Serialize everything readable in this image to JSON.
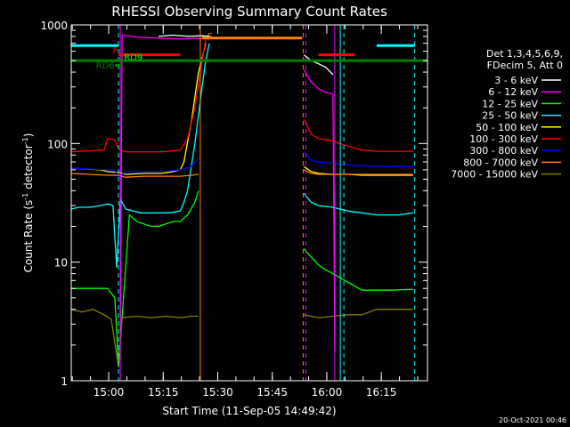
{
  "chart_data": {
    "type": "line",
    "title": "RHESSI Observing Summary Count Rates",
    "xlabel": "Start Time (11-Sep-05 14:49:42)",
    "ylabel": "Count Rate (s",
    "ylabel_sup": "-1",
    "ylabel_tail": " detector",
    "ylabel_tail_sup": "-1",
    "ylabel_close": ")",
    "yscale": "log",
    "ylim": [
      1,
      1000
    ],
    "xlim": [
      0,
      98
    ],
    "x_unit": "minutes after start",
    "y_ticks": [
      {
        "value": 1,
        "label": "1"
      },
      {
        "value": 10,
        "label": "10"
      },
      {
        "value": 100,
        "label": "100"
      },
      {
        "value": 1000,
        "label": "1000"
      }
    ],
    "x_ticks": [
      {
        "value": 10.3,
        "label": "15:00"
      },
      {
        "value": 25.3,
        "label": "15:15"
      },
      {
        "value": 40.3,
        "label": "15:30"
      },
      {
        "value": 55.3,
        "label": "15:45"
      },
      {
        "value": 70.3,
        "label": "16:00"
      },
      {
        "value": 85.3,
        "label": "16:15"
      }
    ],
    "legend_header": [
      "Det 1,3,4,5,6,9,",
      "FDecim 5, Att 0"
    ],
    "series": [
      {
        "name": "3 - 6 keV",
        "color": "#ffffff",
        "segments": [
          {
            "x": [
              24,
              28,
              32,
              36,
              38
            ],
            "y": [
              800,
              820,
              800,
              810,
              800
            ]
          },
          {
            "x": [
              64,
              66,
              68,
              70,
              72
            ],
            "y": [
              560,
              500,
              470,
              440,
              380
            ]
          }
        ]
      },
      {
        "name": "6 - 12 keV",
        "color": "#ff00ff",
        "segments": [
          {
            "x": [
              13.5,
              14,
              18,
              22,
              26,
              30,
              34,
              38
            ],
            "y": [
              2.2,
              820,
              790,
              780,
              770,
              760,
              770,
              760
            ]
          },
          {
            "x": [
              64,
              66,
              68,
              70,
              72,
              72.5
            ],
            "y": [
              420,
              330,
              290,
              270,
              260,
              1.8
            ]
          }
        ]
      },
      {
        "name": "12 - 25 keV",
        "color": "#00ff00",
        "segments": [
          {
            "x": [
              0,
              10,
              12,
              13,
              16,
              18,
              20,
              22,
              24,
              26,
              28,
              30,
              32,
              34,
              35
            ],
            "y": [
              6,
              6,
              5,
              1.3,
              25,
              22,
              21,
              20,
              20,
              21,
              22,
              22,
              25,
              32,
              40
            ]
          },
          {
            "x": [
              64,
              66,
              68,
              70,
              72,
              76,
              80,
              84,
              88,
              94
            ],
            "y": [
              13,
              11,
              9.5,
              8.6,
              8,
              6.8,
              5.8,
              5.8,
              5.8,
              5.9
            ]
          }
        ]
      },
      {
        "name": "25 - 50 keV",
        "color": "#00ffff",
        "segments": [
          {
            "x": [
              0,
              2,
              5,
              8,
              10,
              11.5,
              12.5,
              13.5,
              15,
              19,
              23,
              27,
              30,
              31,
              32,
              34,
              36,
              37,
              38
            ],
            "y": [
              28,
              29,
              29,
              30,
              31,
              30,
              9,
              34,
              28,
              26,
              26,
              26,
              27,
              32,
              40,
              100,
              300,
              500,
              700
            ]
          },
          {
            "x": [
              64,
              66,
              68,
              72,
              76,
              80,
              84,
              90,
              94
            ],
            "y": [
              38,
              32,
              30,
              29,
              27,
              26,
              25,
              25,
              26
            ]
          }
        ]
      },
      {
        "name": "50 - 100 keV",
        "color": "#ffff00",
        "segments": [
          {
            "x": [
              0,
              4,
              8,
              10,
              13,
              15,
              20,
              25,
              28,
              30,
              31,
              33,
              35,
              37
            ],
            "y": [
              62,
              61,
              60,
              58,
              57,
              55,
              56,
              56,
              58,
              60,
              70,
              150,
              400,
              700
            ]
          },
          {
            "x": [
              64,
              66,
              68,
              72,
              76,
              80,
              84,
              90,
              94
            ],
            "y": [
              64,
              58,
              56,
              55,
              55,
              54,
              54,
              54,
              54
            ]
          }
        ]
      },
      {
        "name": "100 - 300 keV",
        "color": "#ff0000",
        "segments": [
          {
            "x": [
              0,
              6,
              9,
              10,
              12,
              13,
              15,
              20,
              25,
              30,
              32,
              34,
              36,
              37
            ],
            "y": [
              85,
              87,
              88,
              110,
              108,
              90,
              85,
              85,
              85,
              88,
              110,
              200,
              500,
              750
            ]
          },
          {
            "x": [
              64,
              66,
              68,
              72,
              76,
              80,
              84,
              90,
              94
            ],
            "y": [
              160,
              120,
              110,
              105,
              95,
              88,
              86,
              86,
              86
            ]
          }
        ]
      },
      {
        "name": "300 - 800 keV",
        "color": "#0000ff",
        "segments": [
          {
            "x": [
              0,
              5,
              10,
              12,
              13,
              15,
              20,
              25,
              30,
              33,
              35
            ],
            "y": [
              62,
              61,
              60,
              60,
              52,
              58,
              58,
              58,
              60,
              64,
              75
            ]
          },
          {
            "x": [
              64,
              66,
              68,
              72,
              76,
              80,
              84,
              90,
              94
            ],
            "y": [
              85,
              72,
              70,
              68,
              66,
              65,
              64,
              64,
              64
            ]
          }
        ]
      },
      {
        "name": "800 - 7000 keV",
        "color": "#ff8000",
        "segments": [
          {
            "x": [
              0,
              5,
              10,
              13,
              15,
              20,
              25,
              30,
              33,
              35
            ],
            "y": [
              56,
              55,
              54,
              54,
              52,
              53,
              53,
              53,
              54,
              55
            ]
          },
          {
            "x": [
              64,
              66,
              68,
              72,
              76,
              80,
              84,
              90,
              94
            ],
            "y": [
              60,
              56,
              55,
              55,
              55,
              55,
              55,
              55,
              55
            ]
          }
        ]
      },
      {
        "name": "7000 - 15000 keV",
        "color": "#808000",
        "segments": [
          {
            "x": [
              0,
              3,
              6,
              9,
              11,
              13,
              14,
              18,
              22,
              26,
              30,
              33,
              35
            ],
            "y": [
              4,
              3.8,
              4,
              3.6,
              3.3,
              1.3,
              3.4,
              3.5,
              3.4,
              3.5,
              3.4,
              3.5,
              3.5
            ]
          },
          {
            "x": [
              64,
              66,
              68,
              72,
              76,
              80,
              84,
              90,
              94
            ],
            "y": [
              3.6,
              3.5,
              3.4,
              3.5,
              3.6,
              3.6,
              4,
              4,
              4
            ]
          }
        ]
      }
    ],
    "markers": {
      "solid_vertical": [
        {
          "x": 13.5,
          "color": "#ff00ff"
        },
        {
          "x": 35.5,
          "color": "#ff8000"
        },
        {
          "x": 72.5,
          "color": "#ff00ff"
        },
        {
          "x": 74,
          "color": "#00ffff"
        }
      ],
      "dashed_vertical": [
        {
          "x": 13.0,
          "color": "#00ffff"
        },
        {
          "x": 63.8,
          "color": "#ff8000"
        },
        {
          "x": 64.5,
          "color": "#ff00ff"
        },
        {
          "x": 75,
          "color": "#00ffff"
        },
        {
          "x": 94.5,
          "color": "#00ffff"
        }
      ],
      "horizontal_bars": [
        {
          "x0": 0,
          "x1": 13,
          "y": 670,
          "color": "#00ffff"
        },
        {
          "x0": 84,
          "x1": 94.5,
          "y": 670,
          "color": "#00ffff"
        },
        {
          "x0": 36,
          "x1": 63.5,
          "y": 775,
          "color": "#ff8000"
        },
        {
          "x0": 13,
          "x1": 30,
          "y": 560,
          "color": "#ff0000"
        },
        {
          "x0": 68,
          "x1": 78,
          "y": 560,
          "color": "#ff0000"
        },
        {
          "x0": 0,
          "x1": 98,
          "y": 500,
          "color": "#008000"
        },
        {
          "x0": 12,
          "x1": 14,
          "y": 455,
          "color": "#008000"
        }
      ]
    },
    "annotations": [
      {
        "text": "F",
        "color": "#ff0000",
        "x": 11.4,
        "y": 570
      },
      {
        "text": "RD6",
        "color": "#008000",
        "x": 6.8,
        "y": 430
      },
      {
        "text": "RD9",
        "color": "#00ff00",
        "x": 14.5,
        "y": 505
      },
      {
        "text": "S",
        "color": "#ff8000",
        "x": 37.4,
        "y": 760
      }
    ],
    "footer_stamp": "20-Oct-2021 00:46"
  }
}
